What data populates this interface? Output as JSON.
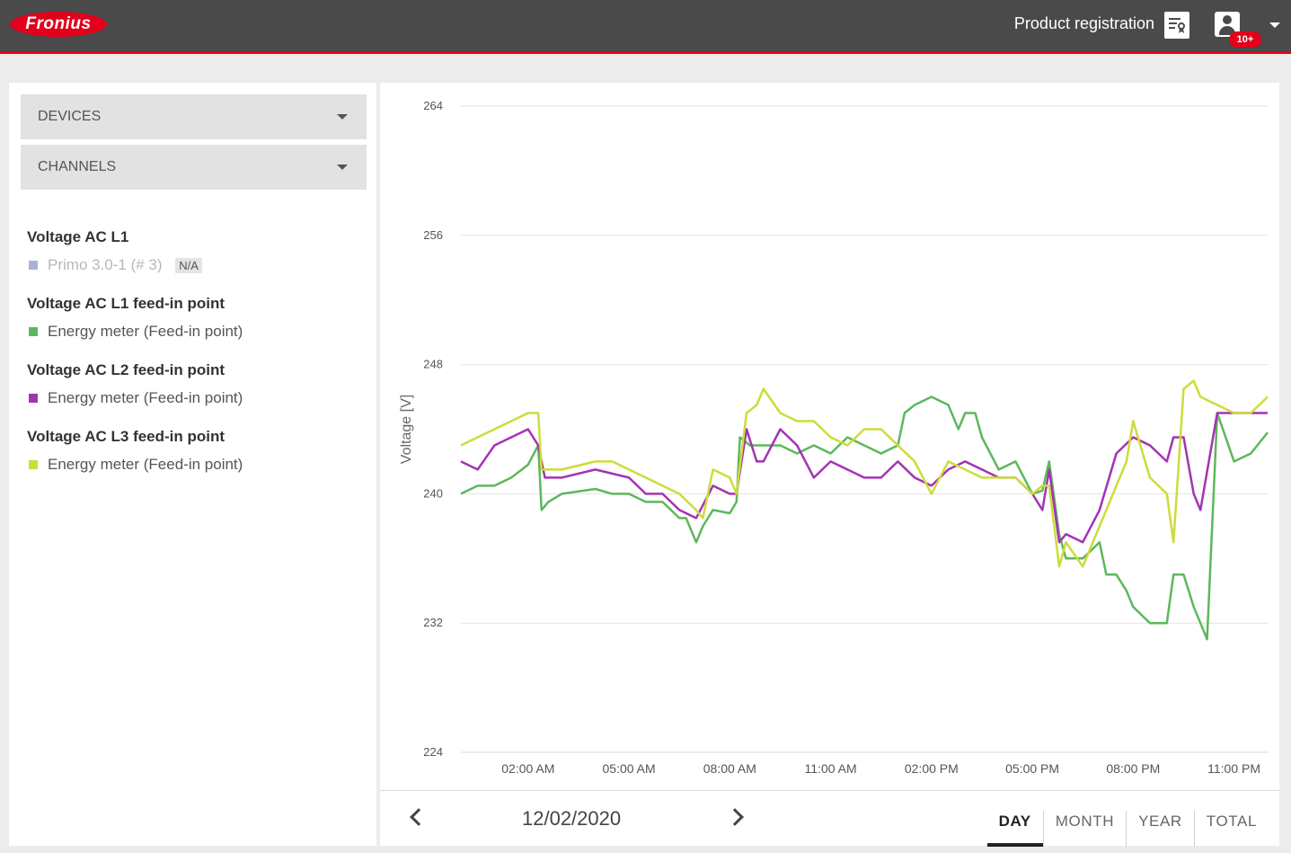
{
  "header": {
    "logo_text": "Fronius",
    "product_registration": "Product registration",
    "notifications_badge": "10+",
    "brand_color": "#e2001a"
  },
  "sidebar": {
    "devices_label": "DEVICES",
    "channels_label": "CHANNELS",
    "legend": [
      {
        "title": "Voltage AC L1",
        "entry": "Primo 3.0-1 (# 3)",
        "badge": "N/A",
        "color": "#aab0dc",
        "disabled": true
      },
      {
        "title": "Voltage AC L1 feed-in point",
        "entry": "Energy meter (Feed-in point)",
        "color": "#5cb85c"
      },
      {
        "title": "Voltage AC L2 feed-in point",
        "entry": "Energy meter (Feed-in point)",
        "color": "#a333b3"
      },
      {
        "title": "Voltage AC L3 feed-in point",
        "entry": "Energy meter (Feed-in point)",
        "color": "#cddc39"
      }
    ]
  },
  "footer": {
    "date": "12/02/2020",
    "tabs": [
      "DAY",
      "MONTH",
      "YEAR",
      "TOTAL"
    ],
    "active_tab": "DAY"
  },
  "chart_data": {
    "type": "line",
    "ylabel": "Voltage [V]",
    "xlabel": "",
    "ylim": [
      224,
      264
    ],
    "yticks": [
      264,
      256,
      248,
      240,
      232,
      224
    ],
    "xlim": [
      0,
      24
    ],
    "xticks": [
      {
        "hour": 2,
        "label": "02:00 AM"
      },
      {
        "hour": 5,
        "label": "05:00 AM"
      },
      {
        "hour": 8,
        "label": "08:00 AM"
      },
      {
        "hour": 11,
        "label": "11:00 AM"
      },
      {
        "hour": 14,
        "label": "02:00 PM"
      },
      {
        "hour": 17,
        "label": "05:00 PM"
      },
      {
        "hour": 20,
        "label": "08:00 PM"
      },
      {
        "hour": 23,
        "label": "11:00 PM"
      }
    ],
    "grid": true,
    "series": [
      {
        "name": "Voltage AC L1 feed-in point",
        "color": "#5cb85c",
        "x": [
          0,
          0.5,
          1,
          1.5,
          2,
          2.3,
          2.4,
          2.6,
          3,
          4,
          4.5,
          5,
          5.5,
          6,
          6.5,
          6.7,
          7,
          7.2,
          7.5,
          8,
          8.2,
          8.3,
          8.6,
          9,
          9.5,
          10,
          10.5,
          11,
          11.5,
          12,
          12.5,
          13,
          13.2,
          13.5,
          14,
          14.5,
          14.8,
          15,
          15.3,
          15.5,
          16,
          16.5,
          17,
          17.3,
          17.5,
          17.8,
          18,
          18.5,
          19,
          19.2,
          19.5,
          19.8,
          20,
          20.5,
          21,
          21.2,
          21.5,
          21.8,
          22,
          22.2,
          22.5,
          23,
          23.5,
          24
        ],
        "y": [
          240,
          240.5,
          240.5,
          241,
          241.8,
          243,
          239,
          239.5,
          240,
          240.3,
          240,
          240,
          239.5,
          239.5,
          238.5,
          238.5,
          237,
          238,
          239,
          238.8,
          239.5,
          243.5,
          243,
          243,
          243,
          242.5,
          243,
          242.5,
          243.5,
          243,
          242.5,
          243,
          245,
          245.5,
          246,
          245.5,
          244,
          245,
          245,
          243.5,
          241.5,
          242,
          240,
          240.2,
          242,
          237.5,
          236,
          236,
          237,
          235,
          235,
          234,
          233,
          232,
          232,
          235,
          235,
          233,
          232,
          231,
          245,
          242,
          242.5,
          243.8
        ]
      },
      {
        "name": "Voltage AC L2 feed-in point",
        "color": "#a333b3",
        "x": [
          0,
          0.5,
          1,
          1.5,
          2,
          2.3,
          2.5,
          3,
          4,
          5,
          5.5,
          6,
          6.5,
          7,
          7.5,
          8,
          8.2,
          8.5,
          8.8,
          9,
          9.5,
          10,
          10.5,
          11,
          11.5,
          12,
          12.5,
          13,
          13.5,
          14,
          14.5,
          15,
          15.5,
          16,
          16.5,
          17,
          17.3,
          17.5,
          17.8,
          18,
          18.5,
          19,
          19.5,
          20,
          20.5,
          21,
          21.2,
          21.5,
          21.8,
          22,
          22.5,
          23,
          23.5,
          24
        ],
        "y": [
          242,
          241.5,
          243,
          243.5,
          244,
          243,
          241,
          241,
          241.5,
          241,
          240,
          240,
          239,
          238.5,
          240.5,
          240,
          240,
          244,
          242,
          242,
          244,
          243,
          241,
          242,
          241.5,
          241,
          241,
          242,
          241,
          240.5,
          241.5,
          242,
          241.5,
          241,
          241,
          240,
          239,
          241.5,
          237,
          237.5,
          237,
          239,
          242.5,
          243.5,
          243,
          242,
          243.5,
          243.5,
          240,
          239,
          245,
          245,
          245,
          245
        ]
      },
      {
        "name": "Voltage AC L3 feed-in point",
        "color": "#cddc39",
        "x": [
          0,
          0.5,
          1,
          1.5,
          2,
          2.3,
          2.4,
          3,
          4,
          4.5,
          5,
          5.5,
          6,
          6.5,
          7,
          7.2,
          7.5,
          8,
          8.2,
          8.5,
          8.8,
          9,
          9.5,
          10,
          10.5,
          11,
          11.5,
          12,
          12.5,
          13,
          13.5,
          14,
          14.5,
          15,
          15.5,
          16,
          16.5,
          17,
          17.3,
          17.5,
          17.8,
          18,
          18.5,
          19,
          19.2,
          19.5,
          19.8,
          20,
          20.5,
          21,
          21.2,
          21.5,
          21.8,
          22,
          22.5,
          23,
          23.5,
          24
        ],
        "y": [
          243,
          243.5,
          244,
          244.5,
          245,
          245,
          241.5,
          241.5,
          242,
          242,
          241.5,
          241,
          240.5,
          240,
          239,
          238.5,
          241.5,
          241,
          240,
          245,
          245.5,
          246.5,
          245,
          244.5,
          244.5,
          243.5,
          243,
          244,
          244,
          243,
          242,
          240,
          242,
          241.5,
          241,
          241,
          241,
          240,
          240.5,
          240.5,
          235.5,
          237,
          235.5,
          238,
          239,
          240.5,
          242,
          244.5,
          241,
          240,
          237,
          246.5,
          247,
          246,
          245.5,
          245,
          245,
          246
        ]
      }
    ]
  }
}
